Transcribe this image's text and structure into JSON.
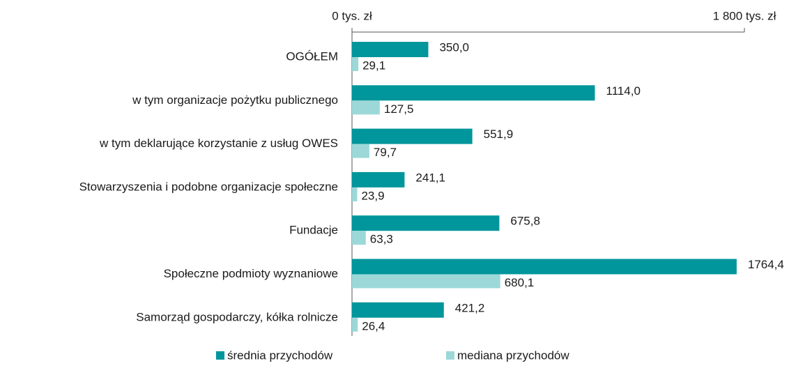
{
  "chart_data": {
    "type": "bar",
    "orientation": "horizontal",
    "categories": [
      "OGÓŁEM",
      "w tym organizacje pożytku publicznego",
      "w tym deklarujące korzystanie z usług OWES",
      "Stowarzyszenia i podobne organizacje społeczne",
      "Fundacje",
      "Społeczne podmioty wyznaniowe",
      "Samorząd gospodarczy, kółka rolnicze"
    ],
    "series": [
      {
        "name": "średnia przychodów",
        "color": "#00969b",
        "values": [
          350.0,
          1114.0,
          551.9,
          241.1,
          675.8,
          1764.4,
          421.2
        ],
        "value_labels": [
          "350,0",
          "1114,0",
          "551,9",
          "241,1",
          "675,8",
          "1764,4",
          "421,2"
        ]
      },
      {
        "name": "mediana przychodów",
        "color": "#9dd8d9",
        "values": [
          29.1,
          127.5,
          79.7,
          23.9,
          63.3,
          680.1,
          26.4
        ],
        "value_labels": [
          "29,1",
          "127,5",
          "79,7",
          "23,9",
          "63,3",
          "680,1",
          "26,4"
        ]
      }
    ],
    "xlim": [
      0,
      1800
    ],
    "xticks": [
      {
        "value": 0,
        "label": "0 tys. zł"
      },
      {
        "value": 1800,
        "label": "1 800 tys. zł"
      }
    ],
    "legend": "bottom"
  }
}
